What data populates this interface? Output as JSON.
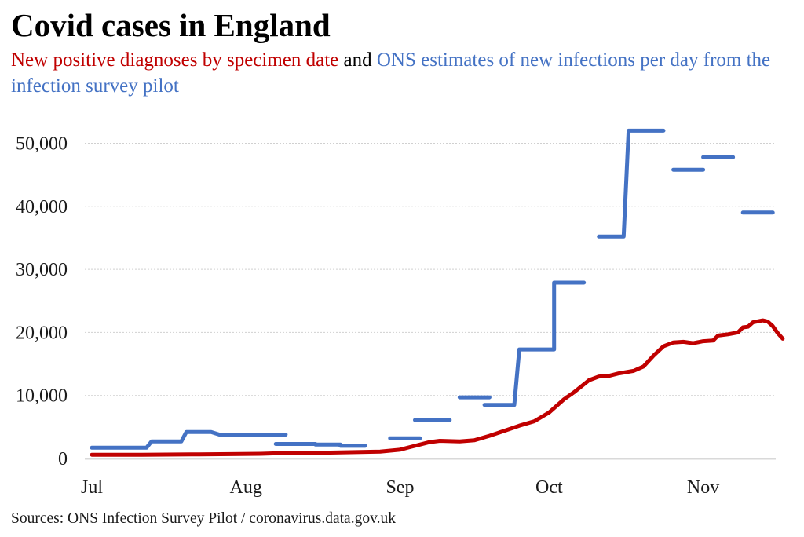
{
  "header": {
    "title": "Covid cases in England",
    "subtitle_red": "New positive diagnoses by specimen date",
    "subtitle_joiner": " and ",
    "subtitle_blue": "ONS estimates of new infections per day from the infection survey pilot"
  },
  "footer": {
    "source": "Sources: ONS Infection Survey Pilot / coronavirus.data.gov.uk"
  },
  "colors": {
    "cases": "#c00000",
    "ons": "#4472c4",
    "grid": "#d0d0d0",
    "axis": "#d9d9d9"
  },
  "chart_data": {
    "type": "line",
    "title": "Covid cases in England",
    "subtitle": "New positive diagnoses by specimen date and ONS estimates of new infections per day from the infection survey pilot",
    "xlabel": "",
    "ylabel": "",
    "x_unit": "days since 1 Jul",
    "xlim": [
      0,
      139
    ],
    "ylim": [
      0,
      55000
    ],
    "yticks": [
      0,
      10000,
      20000,
      30000,
      40000,
      50000
    ],
    "ytick_labels": [
      "0",
      "10,000",
      "20,000",
      "30,000",
      "40,000",
      "50,000"
    ],
    "xticks": [
      0,
      31,
      62,
      92,
      123
    ],
    "xtick_labels": [
      "Jul",
      "Aug",
      "Sep",
      "Oct",
      "Nov"
    ],
    "grid": true,
    "legend": "none (colour-coded subtitle)",
    "series": [
      {
        "name": "ONS estimates of new infections per day",
        "color": "#4472c4",
        "style": "step segments",
        "segments": [
          [
            [
              0,
              1700
            ],
            [
              11,
              1700
            ],
            [
              12,
              2700
            ],
            [
              18,
              2700
            ],
            [
              19,
              4200
            ],
            [
              24,
              4200
            ],
            [
              26,
              3700
            ],
            [
              35,
              3700
            ],
            [
              39,
              3800
            ]
          ],
          [
            [
              37,
              2300
            ],
            [
              45,
              2300
            ],
            [
              45,
              2200
            ],
            [
              50,
              2200
            ],
            [
              50,
              2000
            ],
            [
              55,
              2000
            ]
          ],
          [
            [
              60,
              3200
            ],
            [
              66,
              3200
            ]
          ],
          [
            [
              65,
              6100
            ],
            [
              72,
              6100
            ]
          ],
          [
            [
              74,
              9700
            ],
            [
              80,
              9700
            ]
          ],
          [
            [
              79,
              8500
            ],
            [
              85,
              8500
            ],
            [
              86,
              17300
            ],
            [
              93,
              17300
            ],
            [
              93,
              27900
            ],
            [
              99,
              27900
            ]
          ],
          [
            [
              102,
              35200
            ],
            [
              107,
              35200
            ],
            [
              108,
              52000
            ],
            [
              115,
              52000
            ]
          ],
          [
            [
              117,
              45800
            ],
            [
              123,
              45800
            ]
          ],
          [
            [
              123,
              47800
            ],
            [
              129,
              47800
            ]
          ],
          [
            [
              131,
              39000
            ],
            [
              137,
              39000
            ]
          ]
        ]
      },
      {
        "name": "New positive diagnoses by specimen date",
        "color": "#c00000",
        "style": "line",
        "points": [
          [
            0,
            600
          ],
          [
            10,
            600
          ],
          [
            20,
            650
          ],
          [
            28,
            700
          ],
          [
            34,
            750
          ],
          [
            40,
            900
          ],
          [
            46,
            900
          ],
          [
            52,
            1000
          ],
          [
            58,
            1100
          ],
          [
            62,
            1400
          ],
          [
            64,
            1800
          ],
          [
            66,
            2200
          ],
          [
            68,
            2600
          ],
          [
            70,
            2800
          ],
          [
            74,
            2700
          ],
          [
            77,
            2900
          ],
          [
            80,
            3600
          ],
          [
            83,
            4400
          ],
          [
            86,
            5200
          ],
          [
            89,
            5900
          ],
          [
            92,
            7300
          ],
          [
            95,
            9400
          ],
          [
            97,
            10500
          ],
          [
            100,
            12400
          ],
          [
            102,
            13000
          ],
          [
            104,
            13100
          ],
          [
            106,
            13500
          ],
          [
            109,
            13900
          ],
          [
            111,
            14600
          ],
          [
            113,
            16300
          ],
          [
            115,
            17800
          ],
          [
            117,
            18400
          ],
          [
            119,
            18500
          ],
          [
            121,
            18300
          ],
          [
            123,
            18600
          ],
          [
            125,
            18700
          ],
          [
            126,
            19500
          ],
          [
            128,
            19700
          ],
          [
            130,
            20000
          ],
          [
            131,
            20800
          ],
          [
            132,
            20900
          ],
          [
            133,
            21600
          ],
          [
            135,
            21900
          ],
          [
            136,
            21700
          ],
          [
            137,
            21000
          ],
          [
            138,
            19900
          ],
          [
            139,
            19000
          ]
        ]
      }
    ]
  }
}
